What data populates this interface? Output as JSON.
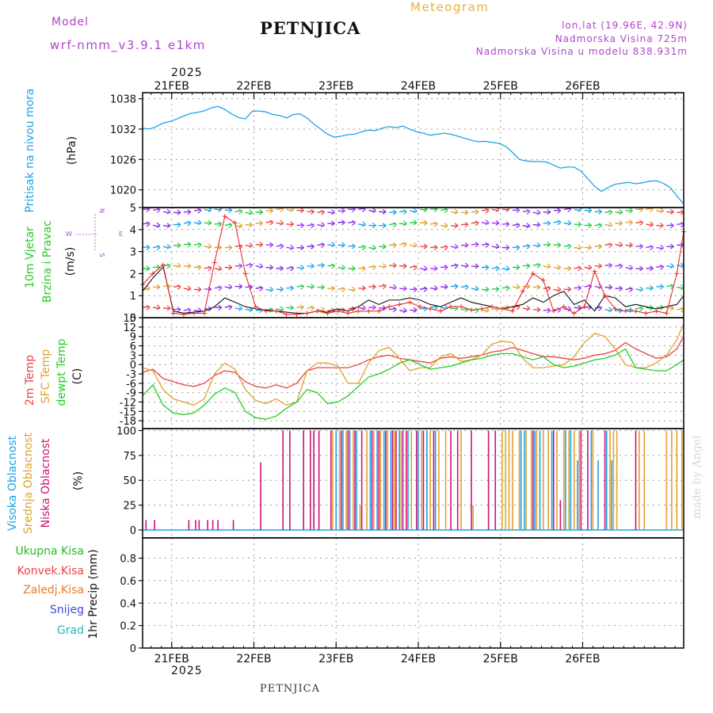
{
  "header": {
    "model_label": "Model",
    "model_name": "wrf-nmm_v3.9.1 e1km",
    "station": "PETNJICA",
    "meteogram": "Meteogram",
    "lonlat": "lon,lat (19.96E, 42.9N)",
    "elevation": "Nadmorska Visina 725m",
    "model_elevation": "Nadmorska Visina u modelu 838.931m",
    "year_top": "2025",
    "year_bottom": "2025",
    "footer_station": "PETNJICA",
    "watermark": "made by Angel"
  },
  "colors": {
    "pressure": "#1aa3e8",
    "purple_text": "#b044cc",
    "wind_speed": "#111111",
    "wind_gust": "#e83030",
    "temp_2m": "#f04040",
    "temp_sfc": "#e0a030",
    "dewpt": "#22cc22",
    "cloud_high": "#1aa3e8",
    "cloud_mid": "#e0a030",
    "cloud_low": "#cc1177",
    "precip_total": "#22bb22",
    "precip_conv": "#f04040",
    "precip_frz": "#f07a20",
    "snow": "#4444dd",
    "hail": "#22bbbb",
    "orange_title": "#e8b040"
  },
  "chart_data": [
    {
      "type": "line",
      "panel": "pressure",
      "ylabel": [
        "Pritisak na nivou mora",
        "(hPa)"
      ],
      "y_ticks": [
        "1038",
        "1032",
        "1026",
        "1020"
      ],
      "ylim": [
        1016,
        1039
      ],
      "x_ticks": [
        "21FEB",
        "22FEB",
        "23FEB",
        "24FEB",
        "25FEB",
        "26FEB"
      ],
      "grid": true,
      "series": [
        {
          "x": [
            0,
            2,
            4,
            6,
            8,
            10,
            12,
            14,
            16,
            18,
            20,
            22,
            24,
            26,
            28,
            30,
            32,
            34,
            36,
            38,
            40,
            42,
            44,
            46,
            48,
            50,
            52,
            54,
            56,
            58,
            60,
            62,
            64,
            66,
            68,
            70,
            72,
            74,
            76,
            78,
            80,
            82,
            84,
            86,
            88,
            90,
            92,
            94,
            96,
            98,
            100,
            102,
            104,
            106,
            108,
            110,
            112,
            114,
            116,
            118,
            120,
            122,
            124,
            126,
            128,
            130,
            132,
            134,
            136,
            138,
            140,
            142,
            144,
            146,
            148,
            150,
            152,
            154,
            156,
            158
          ],
          "y": [
            1032.2,
            1032.0,
            1032.5,
            1033.2,
            1033.5,
            1034.0,
            1034.6,
            1035.1,
            1035.3,
            1035.6,
            1036.2,
            1036.5,
            1035.9,
            1035.0,
            1034.3,
            1034.0,
            1035.5,
            1035.6,
            1035.4,
            1034.9,
            1034.7,
            1034.2,
            1034.9,
            1035.0,
            1034.2,
            1033.0,
            1032.0,
            1031.0,
            1030.4,
            1030.6,
            1030.9,
            1031.0,
            1031.5,
            1031.8,
            1031.7,
            1032.2,
            1032.5,
            1032.3,
            1032.6,
            1032.0,
            1031.5,
            1031.2,
            1030.8,
            1031.0,
            1031.2,
            1031.0,
            1030.6,
            1030.2,
            1029.8,
            1029.5,
            1029.6,
            1029.4,
            1029.2,
            1028.6,
            1027.4,
            1026.0,
            1025.7,
            1025.6,
            1025.6,
            1025.5,
            1024.9,
            1024.3,
            1024.5,
            1024.5,
            1023.7,
            1022.2,
            1020.7,
            1019.7,
            1020.5,
            1021.1,
            1021.3,
            1021.5,
            1021.2,
            1021.4,
            1021.7,
            1021.8,
            1021.3,
            1020.5,
            1018.8,
            1017.2
          ]
        }
      ]
    },
    {
      "type": "line",
      "panel": "wind",
      "ylabel": [
        "10m Vjetar",
        "Brzina i Pravac",
        "(m/s)"
      ],
      "compass": [
        "W",
        "E",
        "N",
        "S"
      ],
      "y_ticks": [
        "5",
        "4",
        "3",
        "2",
        "1",
        "0"
      ],
      "ylim": [
        0,
        5
      ],
      "grid": true,
      "series": [
        {
          "kind": "speed",
          "x": [
            0,
            3,
            6,
            9,
            12,
            15,
            18,
            21,
            24,
            27,
            30,
            33,
            36,
            39,
            42,
            45,
            48,
            51,
            54,
            57,
            60,
            63,
            66,
            69,
            72,
            75,
            78,
            81,
            84,
            87,
            90,
            93,
            96,
            99,
            102,
            105,
            108,
            111,
            114,
            117,
            120,
            123,
            126,
            129,
            132,
            135,
            138,
            141,
            144,
            147,
            150,
            153,
            156,
            158
          ],
          "y": [
            1.2,
            1.8,
            2.3,
            0.3,
            0.2,
            0.25,
            0.3,
            0.5,
            0.9,
            0.7,
            0.5,
            0.4,
            0.35,
            0.3,
            0.25,
            0.2,
            0.2,
            0.3,
            0.25,
            0.4,
            0.3,
            0.5,
            0.8,
            0.6,
            0.8,
            0.8,
            0.9,
            0.8,
            0.6,
            0.5,
            0.7,
            0.9,
            0.7,
            0.6,
            0.5,
            0.4,
            0.5,
            0.6,
            0.9,
            0.7,
            1.0,
            1.2,
            0.6,
            0.8,
            0.3,
            1.0,
            0.9,
            0.5,
            0.6,
            0.5,
            0.4,
            0.5,
            0.6,
            1.0
          ]
        },
        {
          "kind": "gust",
          "x": [
            0,
            3,
            6,
            9,
            12,
            15,
            18,
            21,
            24,
            27,
            30,
            33,
            36,
            39,
            42,
            45,
            48,
            51,
            54,
            57,
            60,
            63,
            66,
            69,
            72,
            75,
            78,
            81,
            84,
            87,
            90,
            93,
            96,
            99,
            102,
            105,
            108,
            111,
            114,
            117,
            120,
            123,
            126,
            129,
            132,
            135,
            138,
            141,
            144,
            147,
            150,
            153,
            156,
            158
          ],
          "y": [
            1.5,
            2.0,
            2.4,
            0.2,
            0.15,
            0.2,
            0.2,
            2.5,
            4.6,
            4.3,
            2.0,
            0.5,
            0.3,
            0.3,
            0.15,
            0.15,
            0.2,
            0.3,
            0.2,
            0.3,
            0.2,
            0.3,
            0.3,
            0.3,
            0.5,
            0.6,
            0.7,
            0.5,
            0.4,
            0.3,
            0.5,
            0.5,
            0.35,
            0.4,
            0.5,
            0.4,
            0.3,
            1.2,
            2.0,
            1.7,
            0.3,
            0.5,
            0.2,
            0.5,
            2.1,
            1.0,
            0.4,
            0.3,
            0.3,
            0.2,
            0.3,
            0.2,
            2.0,
            3.9
          ]
        }
      ]
    },
    {
      "type": "line",
      "panel": "temperature",
      "ylabel": [
        "2m Temp",
        "SFC Temp",
        "dewpt Temp",
        "(C)"
      ],
      "y_ticks": [
        "15",
        "12",
        "9",
        "6",
        "3",
        "0",
        "-3",
        "-6",
        "-9",
        "-12",
        "-15",
        "-18"
      ],
      "ylim": [
        -21,
        15
      ],
      "grid": true,
      "series": [
        {
          "kind": "2m",
          "x": [
            0,
            3,
            6,
            9,
            12,
            15,
            18,
            21,
            24,
            27,
            30,
            33,
            36,
            39,
            42,
            45,
            48,
            51,
            54,
            57,
            60,
            63,
            66,
            69,
            72,
            75,
            78,
            81,
            84,
            87,
            90,
            93,
            96,
            99,
            102,
            105,
            108,
            111,
            114,
            117,
            120,
            123,
            126,
            129,
            132,
            135,
            138,
            141,
            144,
            147,
            150,
            153,
            156,
            158
          ],
          "y": [
            -2.5,
            -1.5,
            -4.5,
            -5.5,
            -6.5,
            -7.0,
            -6.0,
            -3.5,
            -2.0,
            -2.5,
            -5.5,
            -7.0,
            -7.5,
            -6.5,
            -7.5,
            -6.0,
            -2.0,
            -1.0,
            -1.0,
            -1.0,
            -1.0,
            0.0,
            1.5,
            2.5,
            3.0,
            2.0,
            1.5,
            1.0,
            0.5,
            2.0,
            2.5,
            2.0,
            2.5,
            3.0,
            4.0,
            4.5,
            5.5,
            4.5,
            3.5,
            2.5,
            2.5,
            2.0,
            1.5,
            2.0,
            3.0,
            3.5,
            4.5,
            7.0,
            5.0,
            3.5,
            2.0,
            2.5,
            5.0,
            9.0
          ]
        },
        {
          "kind": "sfc",
          "x": [
            0,
            3,
            6,
            9,
            12,
            15,
            18,
            21,
            24,
            27,
            30,
            33,
            36,
            39,
            42,
            45,
            48,
            51,
            54,
            57,
            60,
            63,
            66,
            69,
            72,
            75,
            78,
            81,
            84,
            87,
            90,
            93,
            96,
            99,
            102,
            105,
            108,
            111,
            114,
            117,
            120,
            123,
            126,
            129,
            132,
            135,
            138,
            141,
            144,
            147,
            150,
            153,
            156,
            158
          ],
          "y": [
            -1.0,
            -2.0,
            -8.0,
            -11.0,
            -12.0,
            -13.0,
            -11.0,
            -3.0,
            0.5,
            -1.5,
            -8.0,
            -11.5,
            -12.5,
            -11.0,
            -13.0,
            -12.0,
            -2.0,
            0.5,
            0.5,
            -0.5,
            -6.0,
            -6.0,
            0.5,
            4.5,
            5.5,
            2.0,
            -2.0,
            -1.0,
            -1.0,
            2.5,
            3.5,
            1.0,
            1.5,
            3.0,
            6.5,
            7.5,
            7.0,
            2.0,
            -1.0,
            -1.0,
            -0.5,
            0.0,
            2.5,
            7.0,
            10.0,
            9.0,
            5.0,
            0.0,
            -1.0,
            -1.0,
            0.5,
            3.0,
            8.0,
            13.0
          ]
        },
        {
          "kind": "dewpt",
          "x": [
            0,
            3,
            6,
            9,
            12,
            15,
            18,
            21,
            24,
            27,
            30,
            33,
            36,
            39,
            42,
            45,
            48,
            51,
            54,
            57,
            60,
            63,
            66,
            69,
            72,
            75,
            78,
            81,
            84,
            87,
            90,
            93,
            96,
            99,
            102,
            105,
            108,
            111,
            114,
            117,
            120,
            123,
            126,
            129,
            132,
            135,
            138,
            141,
            144,
            147,
            150,
            153,
            156,
            158
          ],
          "y": [
            -10.0,
            -6.5,
            -13.0,
            -15.5,
            -16.0,
            -15.5,
            -13.0,
            -9.5,
            -7.5,
            -9.0,
            -15.0,
            -17.0,
            -17.5,
            -16.5,
            -14.0,
            -12.0,
            -8.0,
            -9.0,
            -12.5,
            -12.0,
            -10.0,
            -7.0,
            -4.0,
            -3.0,
            -1.5,
            0.5,
            1.5,
            0.0,
            -1.5,
            -1.0,
            -0.5,
            0.5,
            1.5,
            2.0,
            3.0,
            3.5,
            3.5,
            2.5,
            1.5,
            2.5,
            0.0,
            -1.0,
            -0.5,
            0.5,
            1.5,
            2.0,
            3.0,
            5.0,
            -1.0,
            -1.5,
            -2.0,
            -2.0,
            0.0,
            1.5
          ]
        }
      ]
    },
    {
      "type": "bar",
      "panel": "clouds",
      "ylabel": [
        "Visoka Oblacnost",
        "Srednja Oblacnost",
        "Niska Oblacnost",
        "(%)"
      ],
      "y_ticks": [
        "100",
        "75",
        "50",
        "25",
        "0"
      ],
      "ylim": [
        0,
        100
      ],
      "grid": true,
      "series": [
        {
          "kind": "low",
          "x": [
            1,
            3.5,
            13.5,
            15.5,
            16.5,
            19,
            20.5,
            22,
            26.5,
            34.5,
            41,
            43,
            47,
            49,
            50,
            51.5,
            55,
            58,
            60,
            62,
            64,
            67,
            69,
            71,
            73,
            74,
            76,
            77,
            80,
            82,
            83,
            85,
            90,
            92,
            96,
            101,
            103,
            114,
            120,
            122,
            128,
            130,
            135,
            144
          ],
          "y": [
            10,
            10,
            10,
            10,
            10,
            10,
            10,
            10,
            10,
            68,
            100,
            100,
            100,
            100,
            100,
            100,
            100,
            100,
            100,
            100,
            100,
            100,
            100,
            100,
            100,
            100,
            100,
            100,
            100,
            100,
            100,
            100,
            100,
            100,
            100,
            100,
            100,
            100,
            100,
            30,
            100,
            100,
            100,
            100
          ]
        },
        {
          "kind": "mid",
          "x": [
            55.5,
            57.5,
            59.5,
            61.5,
            63.5,
            65.5,
            67.5,
            69.5,
            71.5,
            73.5,
            75.5,
            78.5,
            81.5,
            84,
            86.5,
            88.5,
            93,
            96.5,
            105,
            106,
            107,
            108,
            110,
            112,
            113.5,
            115,
            117,
            118.5,
            121,
            123,
            124.5,
            126,
            127.5,
            131.5,
            136.5,
            137.5,
            138.5,
            145,
            146.5,
            153,
            154.5,
            156,
            157.5
          ],
          "y": [
            100,
            100,
            100,
            100,
            25,
            100,
            100,
            100,
            100,
            100,
            100,
            100,
            100,
            100,
            100,
            100,
            100,
            25,
            100,
            100,
            100,
            100,
            100,
            100,
            100,
            100,
            100,
            100,
            100,
            100,
            100,
            100,
            100,
            100,
            100,
            100,
            100,
            100,
            100,
            100,
            100,
            100,
            100
          ]
        },
        {
          "kind": "high",
          "x": [
            56.5,
            58.5,
            60.5,
            62.5,
            66.5,
            68.5,
            70.5,
            72.5,
            75,
            77.5,
            80.5,
            83,
            85.5,
            110.5,
            111.5,
            114.5,
            116,
            119.5,
            123.5,
            125,
            127,
            131,
            133,
            135.5,
            137
          ],
          "y": [
            100,
            100,
            100,
            100,
            100,
            100,
            100,
            100,
            100,
            100,
            100,
            100,
            100,
            100,
            100,
            100,
            100,
            100,
            100,
            100,
            70,
            100,
            70,
            100,
            70
          ]
        }
      ]
    },
    {
      "type": "line",
      "panel": "precip",
      "ylabel": [
        "1hr Precip (mm)"
      ],
      "legend": [
        "Ukupna Kisa",
        "Konvek.Kisa",
        "Zaledj.Kisa",
        "Snijeg",
        "Grad"
      ],
      "y_ticks": [
        "0.8",
        "0.6",
        "0.4",
        "0.2",
        "0"
      ],
      "ylim": [
        0,
        1.0
      ],
      "x_ticks": [
        "21FEB",
        "22FEB",
        "23FEB",
        "24FEB",
        "25FEB",
        "26FEB"
      ],
      "grid": true,
      "series": []
    }
  ]
}
